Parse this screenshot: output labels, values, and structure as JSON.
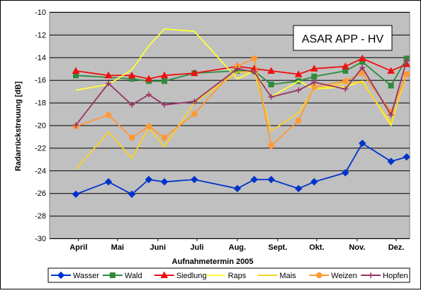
{
  "chart_data": {
    "type": "line",
    "title": "ASAR APP - HV",
    "xlabel": "Aufnahmetermin 2005",
    "ylabel": "Radarrückstreuung [dB]",
    "ylim": [
      -30,
      -10
    ],
    "yticks": [
      -10,
      -12,
      -14,
      -16,
      -18,
      -20,
      -22,
      -24,
      -26,
      -28,
      -30
    ],
    "xlim": [
      "2005-04-01",
      "2005-12-15"
    ],
    "x_ticks": [
      "April",
      "Mai",
      "Juni",
      "Juli",
      "Aug.",
      "Sept.",
      "Okt.",
      "Nov.",
      "Dez."
    ],
    "grid": true,
    "legend_position": "bottom",
    "series": [
      {
        "name": "Wasser",
        "color": "#0033cc",
        "marker": "diamond",
        "points": [
          [
            "2005-04-13",
            -26.1
          ],
          [
            "2005-05-08",
            -25.0
          ],
          [
            "2005-05-26",
            -26.1
          ],
          [
            "2005-06-08",
            -24.8
          ],
          [
            "2005-06-20",
            -25.0
          ],
          [
            "2005-07-13",
            -24.8
          ],
          [
            "2005-08-15",
            -25.6
          ],
          [
            "2005-08-28",
            -24.8
          ],
          [
            "2005-09-10",
            -24.8
          ],
          [
            "2005-10-01",
            -25.6
          ],
          [
            "2005-10-13",
            -25.0
          ],
          [
            "2005-11-06",
            -24.2
          ],
          [
            "2005-11-19",
            -21.6
          ],
          [
            "2005-12-11",
            -23.2
          ],
          [
            "2005-12-23",
            -22.8
          ]
        ]
      },
      {
        "name": "Wald",
        "color": "#2e8b3e",
        "marker": "square",
        "points": [
          [
            "2005-04-13",
            -15.6
          ],
          [
            "2005-05-26",
            -15.9
          ],
          [
            "2005-06-08",
            -16.1
          ],
          [
            "2005-06-20",
            -16.1
          ],
          [
            "2005-07-13",
            -15.4
          ],
          [
            "2005-08-15",
            -15.2
          ],
          [
            "2005-08-28",
            -15.2
          ],
          [
            "2005-09-10",
            -16.4
          ],
          [
            "2005-10-01",
            -16.1
          ],
          [
            "2005-10-13",
            -15.7
          ],
          [
            "2005-11-06",
            -15.2
          ],
          [
            "2005-11-19",
            -14.4
          ],
          [
            "2005-12-11",
            -16.5
          ],
          [
            "2005-12-23",
            -14.1
          ]
        ]
      },
      {
        "name": "Siedlung",
        "color": "#ee1111",
        "marker": "triangle",
        "points": [
          [
            "2005-04-13",
            -15.2
          ],
          [
            "2005-05-08",
            -15.6
          ],
          [
            "2005-05-26",
            -15.6
          ],
          [
            "2005-06-08",
            -15.9
          ],
          [
            "2005-06-20",
            -15.6
          ],
          [
            "2005-07-13",
            -15.4
          ],
          [
            "2005-08-15",
            -14.8
          ],
          [
            "2005-08-28",
            -15.0
          ],
          [
            "2005-09-10",
            -15.2
          ],
          [
            "2005-10-01",
            -15.5
          ],
          [
            "2005-10-13",
            -15.0
          ],
          [
            "2005-11-06",
            -14.8
          ],
          [
            "2005-11-19",
            -14.1
          ],
          [
            "2005-12-11",
            -15.2
          ],
          [
            "2005-12-23",
            -14.6
          ]
        ]
      },
      {
        "name": "Raps",
        "color": "#ffff33",
        "marker": "none",
        "points": [
          [
            "2005-04-13",
            -16.9
          ],
          [
            "2005-05-08",
            -16.4
          ],
          [
            "2005-05-26",
            -15.1
          ],
          [
            "2005-06-08",
            -13.0
          ],
          [
            "2005-06-20",
            -11.5
          ],
          [
            "2005-07-13",
            -11.7
          ],
          [
            "2005-08-15",
            -15.9
          ],
          [
            "2005-08-28",
            -15.2
          ],
          [
            "2005-09-10",
            -17.5
          ],
          [
            "2005-10-01",
            -16.1
          ],
          [
            "2005-10-13",
            -16.8
          ],
          [
            "2005-11-06",
            -16.6
          ],
          [
            "2005-11-19",
            -16.1
          ],
          [
            "2005-12-11",
            -20.0
          ],
          [
            "2005-12-23",
            -15.3
          ]
        ]
      },
      {
        "name": "Mais",
        "color": "#ffd21e",
        "marker": "none",
        "points": [
          [
            "2005-04-13",
            -23.9
          ],
          [
            "2005-05-08",
            -20.6
          ],
          [
            "2005-05-26",
            -22.9
          ],
          [
            "2005-06-08",
            -20.2
          ],
          [
            "2005-06-20",
            -21.9
          ],
          [
            "2005-07-13",
            -18.0
          ],
          [
            "2005-08-15",
            -15.3
          ],
          [
            "2005-08-28",
            -15.3
          ],
          [
            "2005-09-10",
            -20.5
          ],
          [
            "2005-10-01",
            -18.9
          ],
          [
            "2005-10-13",
            -16.8
          ],
          [
            "2005-11-06",
            -16.3
          ],
          [
            "2005-11-19",
            -16.2
          ],
          [
            "2005-12-11",
            -19.8
          ],
          [
            "2005-12-23",
            -15.5
          ]
        ]
      },
      {
        "name": "Weizen",
        "color": "#ff9933",
        "marker": "circle",
        "points": [
          [
            "2005-04-13",
            -20.1
          ],
          [
            "2005-05-08",
            -19.1
          ],
          [
            "2005-05-26",
            -21.1
          ],
          [
            "2005-06-08",
            -20.1
          ],
          [
            "2005-06-20",
            -21.1
          ],
          [
            "2005-07-13",
            -19.0
          ],
          [
            "2005-08-15",
            -14.8
          ],
          [
            "2005-08-28",
            -14.1
          ],
          [
            "2005-09-10",
            -21.8
          ],
          [
            "2005-10-01",
            -19.6
          ],
          [
            "2005-10-13",
            -16.6
          ],
          [
            "2005-11-06",
            -16.1
          ],
          [
            "2005-11-19",
            -15.4
          ],
          [
            "2005-12-11",
            -18.8
          ],
          [
            "2005-12-23",
            -15.5
          ]
        ]
      },
      {
        "name": "Hopfen",
        "color": "#993366",
        "marker": "cross",
        "points": [
          [
            "2005-04-13",
            -20.0
          ],
          [
            "2005-05-08",
            -16.3
          ],
          [
            "2005-05-26",
            -18.2
          ],
          [
            "2005-06-08",
            -17.3
          ],
          [
            "2005-06-20",
            -18.2
          ],
          [
            "2005-07-13",
            -17.9
          ],
          [
            "2005-08-15",
            -15.0
          ],
          [
            "2005-08-28",
            -15.3
          ],
          [
            "2005-09-10",
            -17.5
          ],
          [
            "2005-10-01",
            -16.9
          ],
          [
            "2005-10-13",
            -16.2
          ],
          [
            "2005-11-06",
            -16.8
          ],
          [
            "2005-11-19",
            -14.9
          ],
          [
            "2005-12-11",
            -19.1
          ],
          [
            "2005-12-23",
            -14.3
          ]
        ]
      }
    ]
  }
}
